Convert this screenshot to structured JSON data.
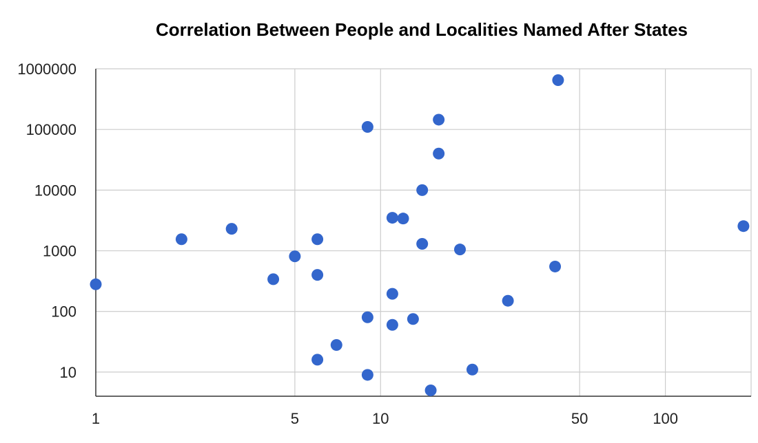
{
  "chart_data": {
    "type": "scatter",
    "title": "Correlation Between People and Localities Named After States",
    "xlabel": "",
    "ylabel": "",
    "x_scale": "log",
    "y_scale": "log",
    "xlim": [
      1,
      200
    ],
    "ylim": [
      4,
      1000000
    ],
    "x_ticks": [
      1,
      5,
      10,
      50,
      100
    ],
    "x_tick_labels": [
      "1",
      "5",
      "10",
      "50",
      "100"
    ],
    "y_ticks": [
      10,
      100,
      1000,
      10000,
      100000,
      1000000
    ],
    "y_tick_labels": [
      "10",
      "100",
      "1000",
      "10000",
      "100000",
      "1000000"
    ],
    "grid": true,
    "legend": "none",
    "point_color": "#3366cc",
    "points": [
      {
        "x": 1,
        "y": 280
      },
      {
        "x": 2,
        "y": 1550
      },
      {
        "x": 3,
        "y": 2300
      },
      {
        "x": 4.2,
        "y": 340
      },
      {
        "x": 5,
        "y": 810
      },
      {
        "x": 6,
        "y": 1550
      },
      {
        "x": 6,
        "y": 400
      },
      {
        "x": 6,
        "y": 16
      },
      {
        "x": 7,
        "y": 28
      },
      {
        "x": 9,
        "y": 110000
      },
      {
        "x": 9,
        "y": 80
      },
      {
        "x": 9,
        "y": 9
      },
      {
        "x": 11,
        "y": 3500
      },
      {
        "x": 11,
        "y": 195
      },
      {
        "x": 11,
        "y": 60
      },
      {
        "x": 12,
        "y": 3400
      },
      {
        "x": 13,
        "y": 75
      },
      {
        "x": 14,
        "y": 10000
      },
      {
        "x": 14,
        "y": 1300
      },
      {
        "x": 15,
        "y": 5
      },
      {
        "x": 16,
        "y": 145000
      },
      {
        "x": 16,
        "y": 40000
      },
      {
        "x": 19,
        "y": 1050
      },
      {
        "x": 21,
        "y": 11
      },
      {
        "x": 28,
        "y": 150
      },
      {
        "x": 41,
        "y": 550
      },
      {
        "x": 42,
        "y": 650000
      },
      {
        "x": 188,
        "y": 2550
      }
    ]
  }
}
